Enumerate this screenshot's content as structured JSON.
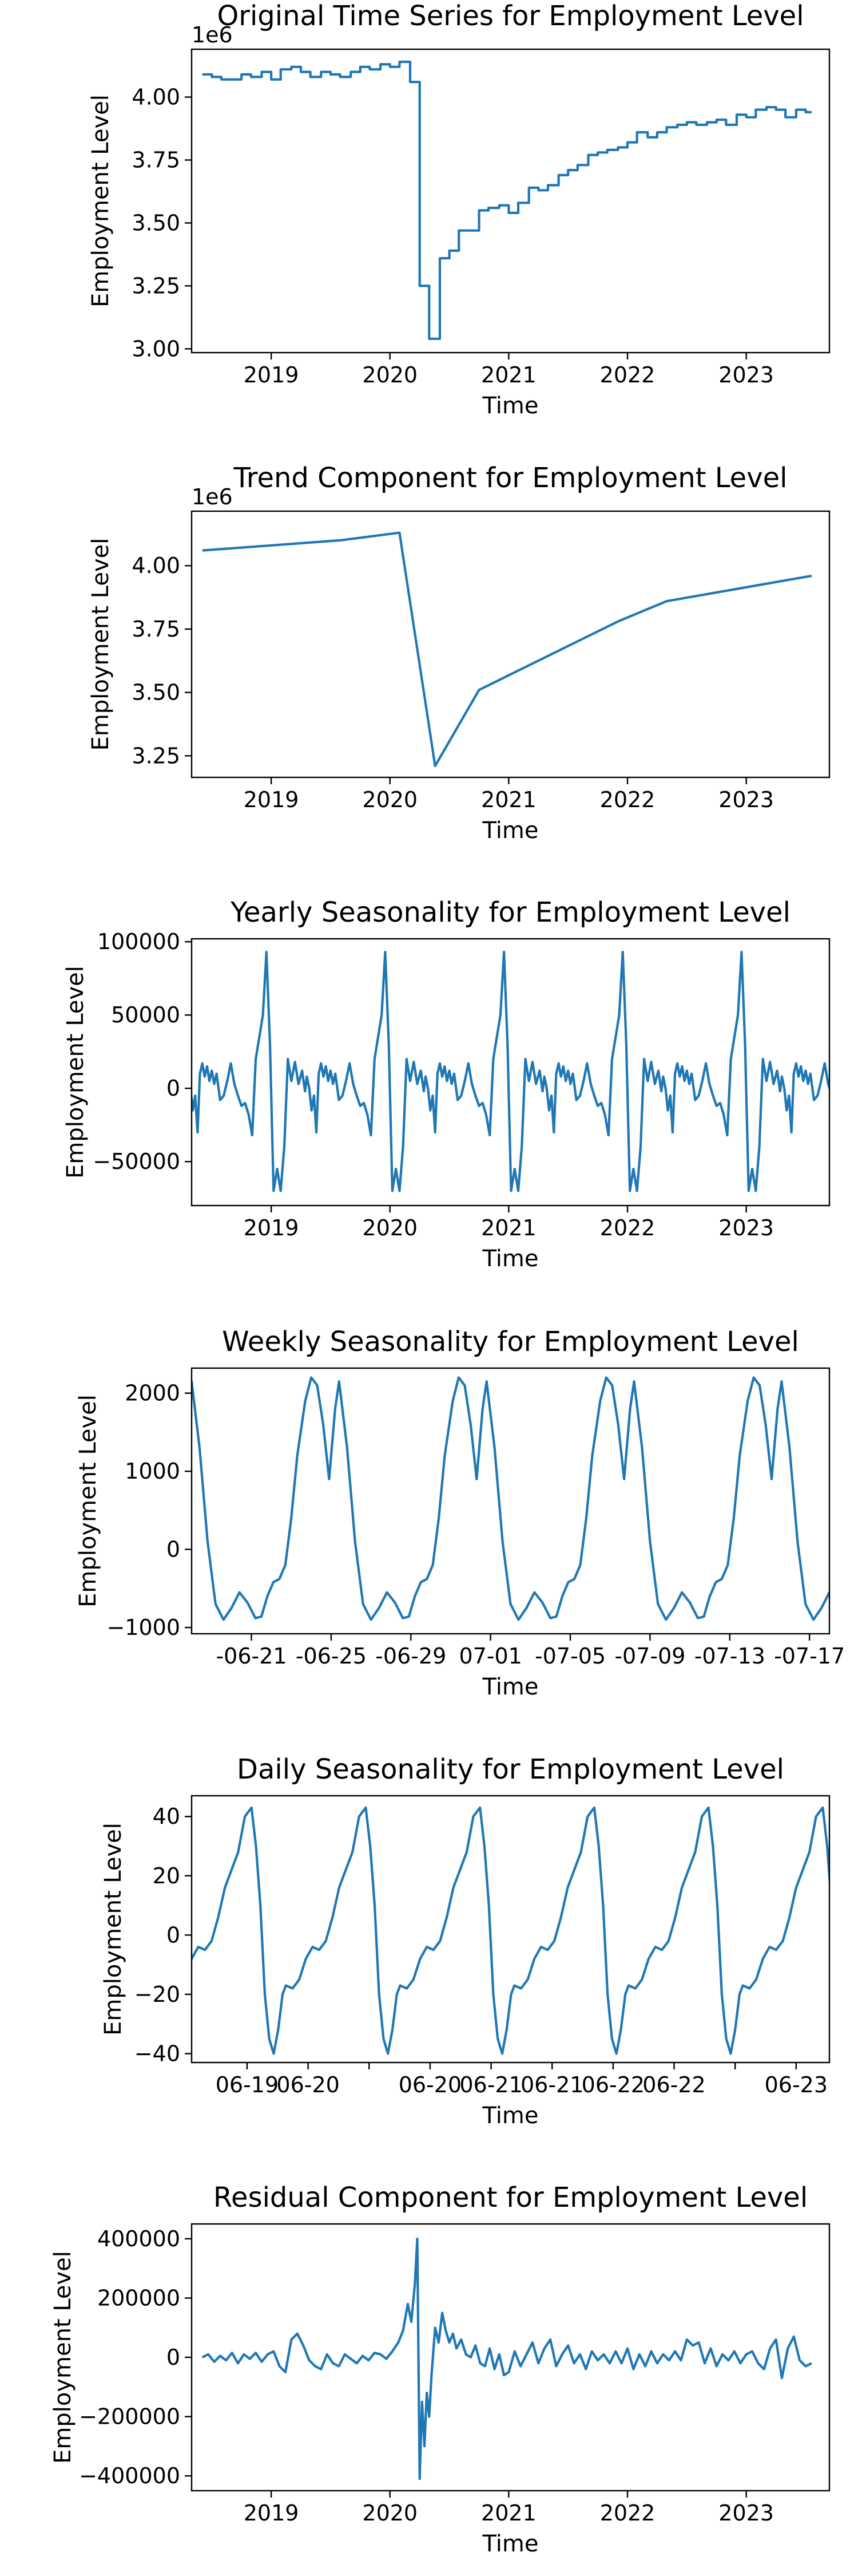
{
  "line_color": "#1f77b4",
  "chart_data": [
    {
      "type": "line",
      "title": "Original Time Series for Employment Level",
      "xlabel": "Time",
      "ylabel": "Employment Level",
      "offset_label": "1e6",
      "xlim": [
        2018.33,
        2023.7
      ],
      "ylim": [
        2.985,
        4.19
      ],
      "xticks": [
        2019,
        2020,
        2021,
        2022,
        2023
      ],
      "xtick_labels": [
        "2019",
        "2020",
        "2021",
        "2022",
        "2023"
      ],
      "yticks": [
        3.0,
        3.25,
        3.5,
        3.75,
        4.0
      ],
      "ytick_labels": [
        "3.00",
        "3.25",
        "3.50",
        "3.75",
        "4.00"
      ],
      "grid": false,
      "step": true,
      "series": [
        {
          "x": [
            2018.42,
            2018.5,
            2018.58,
            2018.75,
            2018.83,
            2018.92,
            2019.0,
            2019.08,
            2019.17,
            2019.25,
            2019.33,
            2019.42,
            2019.5,
            2019.58,
            2019.67,
            2019.75,
            2019.83,
            2019.92,
            2020.0,
            2020.08,
            2020.17,
            2020.25,
            2020.33,
            2020.42,
            2020.5,
            2020.58,
            2020.67,
            2020.75,
            2020.83,
            2020.92,
            2021.0,
            2021.08,
            2021.17,
            2021.25,
            2021.33,
            2021.42,
            2021.5,
            2021.58,
            2021.67,
            2021.75,
            2021.83,
            2021.92,
            2022.0,
            2022.08,
            2022.17,
            2022.25,
            2022.33,
            2022.42,
            2022.5,
            2022.58,
            2022.67,
            2022.75,
            2022.83,
            2022.92,
            2023.0,
            2023.08,
            2023.17,
            2023.25,
            2023.33,
            2023.42,
            2023.5,
            2023.55
          ],
          "y": [
            4.09,
            4.08,
            4.07,
            4.09,
            4.08,
            4.1,
            4.07,
            4.11,
            4.12,
            4.1,
            4.08,
            4.1,
            4.09,
            4.08,
            4.1,
            4.12,
            4.11,
            4.13,
            4.12,
            4.14,
            4.06,
            3.25,
            3.04,
            3.36,
            3.39,
            3.47,
            3.47,
            3.55,
            3.56,
            3.57,
            3.54,
            3.58,
            3.64,
            3.63,
            3.65,
            3.69,
            3.71,
            3.73,
            3.77,
            3.78,
            3.79,
            3.8,
            3.82,
            3.86,
            3.84,
            3.86,
            3.88,
            3.89,
            3.9,
            3.89,
            3.9,
            3.91,
            3.89,
            3.93,
            3.92,
            3.95,
            3.96,
            3.95,
            3.92,
            3.95,
            3.94,
            3.94
          ]
        }
      ]
    },
    {
      "type": "line",
      "title": "Trend Component for Employment Level",
      "xlabel": "Time",
      "ylabel": "Employment Level",
      "offset_label": "1e6",
      "xlim": [
        2018.33,
        2023.7
      ],
      "ylim": [
        3.165,
        4.215
      ],
      "xticks": [
        2019,
        2020,
        2021,
        2022,
        2023
      ],
      "xtick_labels": [
        "2019",
        "2020",
        "2021",
        "2022",
        "2023"
      ],
      "yticks": [
        3.25,
        3.5,
        3.75,
        4.0
      ],
      "ytick_labels": [
        "3.25",
        "3.50",
        "3.75",
        "4.00"
      ],
      "grid": false,
      "series": [
        {
          "x": [
            2018.42,
            2019.58,
            2020.08,
            2020.38,
            2020.75,
            2021.92,
            2022.33,
            2023.55
          ],
          "y": [
            4.06,
            4.1,
            4.13,
            3.21,
            3.51,
            3.78,
            3.86,
            3.96
          ]
        }
      ]
    },
    {
      "type": "line",
      "title": "Yearly Seasonality for Employment Level",
      "xlabel": "Time",
      "ylabel": "Employment Level",
      "xlim": [
        2018.33,
        2023.7
      ],
      "ylim": [
        -80000,
        102000
      ],
      "xticks": [
        2019,
        2020,
        2021,
        2022,
        2023
      ],
      "xtick_labels": [
        "2019",
        "2020",
        "2021",
        "2022",
        "2023"
      ],
      "yticks": [
        -50000,
        0,
        50000,
        100000
      ],
      "ytick_labels": [
        "−50000",
        "0",
        "50000",
        "100000"
      ],
      "grid": false,
      "periodic": {
        "x_start": 2018.42,
        "x_end": 2023.55,
        "period": 1.0,
        "phase_origin": 2018.42,
        "phase": [
          0.0,
          0.02,
          0.04,
          0.06,
          0.08,
          0.1,
          0.12,
          0.15,
          0.18,
          0.21,
          0.24,
          0.27,
          0.3,
          0.33,
          0.36,
          0.39,
          0.42,
          0.45,
          0.48,
          0.51,
          0.54,
          0.57,
          0.6,
          0.63,
          0.66,
          0.69,
          0.72,
          0.75,
          0.78,
          0.81,
          0.84,
          0.865,
          0.88,
          0.9,
          0.92,
          0.94,
          0.96,
          0.98,
          1.0
        ],
        "y": [
          17000,
          8000,
          15000,
          5000,
          12000,
          3000,
          10000,
          -8000,
          -5000,
          5000,
          17000,
          3000,
          -5000,
          -12000,
          -10000,
          -18000,
          -32000,
          20000,
          35000,
          50000,
          93000,
          30000,
          -70000,
          -55000,
          -70000,
          -40000,
          20000,
          5000,
          18000,
          3000,
          12000,
          -2000,
          8000,
          0,
          -15000,
          -5000,
          -30000,
          10000,
          17000
        ]
      }
    },
    {
      "type": "line",
      "title": "Weekly Seasonality for Employment Level",
      "xlabel": "Time",
      "ylabel": "Employment Level",
      "xlim": [
        0,
        32
      ],
      "ylim": [
        -1080,
        2320
      ],
      "xticks": [
        3,
        7,
        11,
        15,
        19,
        23,
        27,
        31
      ],
      "xtick_labels": [
        "-06-21",
        "-06-25",
        "-06-29",
        "07-01",
        "-07-05",
        "-07-09",
        "-07-13",
        "-07-17"
      ],
      "yticks": [
        -1000,
        0,
        1000,
        2000
      ],
      "ytick_labels": [
        "−1000",
        "0",
        "1000",
        "2000"
      ],
      "grid": false,
      "periodic": {
        "x_start": 0,
        "x_end": 32,
        "period": 7.4,
        "phase_origin": 0,
        "phase": [
          0.0,
          0.4,
          0.8,
          1.2,
          1.6,
          2.0,
          2.4,
          2.8,
          3.2,
          3.5,
          3.8,
          4.1,
          4.4,
          4.7,
          5.0,
          5.3,
          5.7,
          6.0,
          6.3,
          6.6,
          6.9,
          7.2,
          7.4
        ],
        "y": [
          2150,
          1300,
          100,
          -700,
          -900,
          -750,
          -550,
          -680,
          -880,
          -860,
          -600,
          -420,
          -380,
          -200,
          400,
          1200,
          1900,
          2200,
          2100,
          1600,
          900,
          1800,
          2150
        ]
      }
    },
    {
      "type": "line",
      "title": "Daily Seasonality for Employment Level",
      "xlabel": "Time",
      "ylabel": "Employment Level",
      "xlim": [
        0,
        115
      ],
      "ylim": [
        -43,
        47
      ],
      "xticks": [
        10,
        21,
        32,
        43,
        54,
        65,
        76,
        87,
        98,
        109
      ],
      "xtick_labels": [
        "06-19",
        "06-20",
        "06-20",
        "06-21",
        "06-21",
        "06-22",
        "06-22",
        "06-23"
      ],
      "xtick_label_index": [
        0,
        1,
        3,
        4,
        5,
        6,
        7,
        9
      ],
      "yticks": [
        -40,
        -20,
        0,
        20,
        40
      ],
      "ytick_labels": [
        "−40",
        "−20",
        "0",
        "20",
        "40"
      ],
      "grid": false,
      "periodic": {
        "x_start": 0,
        "x_end": 115,
        "period": 20.6,
        "phase_origin": -3.6,
        "phase": [
          0.0,
          1.2,
          2.4,
          3.6,
          4.8,
          6.0,
          7.2,
          8.4,
          9.6,
          10.8,
          12.0,
          13.2,
          14.4,
          15.2,
          16.0,
          16.8,
          17.6,
          18.4,
          19.2,
          20.0,
          20.6
        ],
        "y": [
          -17,
          -18,
          -15,
          -8,
          -4,
          -5,
          -2,
          6,
          16,
          22,
          28,
          40,
          43,
          30,
          10,
          -20,
          -35,
          -40,
          -32,
          -20,
          -17
        ]
      }
    },
    {
      "type": "line",
      "title": "Residual Component for Employment Level",
      "xlabel": "Time",
      "ylabel": "Employment Level",
      "xlim": [
        2018.33,
        2023.7
      ],
      "ylim": [
        -450000,
        450000
      ],
      "xticks": [
        2019,
        2020,
        2021,
        2022,
        2023
      ],
      "xtick_labels": [
        "2019",
        "2020",
        "2021",
        "2022",
        "2023"
      ],
      "yticks": [
        -400000,
        -200000,
        0,
        200000,
        400000
      ],
      "ytick_labels": [
        "−400000",
        "−200000",
        "0",
        "200000",
        "400000"
      ],
      "grid": false,
      "series": [
        {
          "x": [
            2018.42,
            2018.47,
            2018.52,
            2018.57,
            2018.62,
            2018.67,
            2018.72,
            2018.77,
            2018.82,
            2018.87,
            2018.92,
            2018.97,
            2019.02,
            2019.07,
            2019.12,
            2019.17,
            2019.22,
            2019.27,
            2019.32,
            2019.37,
            2019.42,
            2019.47,
            2019.52,
            2019.57,
            2019.62,
            2019.67,
            2019.72,
            2019.77,
            2019.82,
            2019.87,
            2019.92,
            2019.97,
            2020.02,
            2020.07,
            2020.11,
            2020.15,
            2020.18,
            2020.21,
            2020.23,
            2020.25,
            2020.27,
            2020.29,
            2020.31,
            2020.33,
            2020.35,
            2020.38,
            2020.41,
            2020.44,
            2020.47,
            2020.5,
            2020.53,
            2020.56,
            2020.6,
            2020.64,
            2020.68,
            2020.72,
            2020.76,
            2020.8,
            2020.84,
            2020.88,
            2020.92,
            2020.96,
            2021.0,
            2021.05,
            2021.1,
            2021.15,
            2021.2,
            2021.25,
            2021.3,
            2021.35,
            2021.4,
            2021.45,
            2021.5,
            2021.55,
            2021.6,
            2021.65,
            2021.7,
            2021.75,
            2021.8,
            2021.85,
            2021.9,
            2021.95,
            2022.0,
            2022.05,
            2022.1,
            2022.15,
            2022.2,
            2022.25,
            2022.3,
            2022.35,
            2022.4,
            2022.45,
            2022.5,
            2022.55,
            2022.6,
            2022.65,
            2022.7,
            2022.75,
            2022.8,
            2022.85,
            2022.9,
            2022.95,
            2023.0,
            2023.05,
            2023.1,
            2023.15,
            2023.2,
            2023.25,
            2023.3,
            2023.35,
            2023.4,
            2023.45,
            2023.5,
            2023.55
          ],
          "y": [
            0,
            10000,
            -15000,
            5000,
            -10000,
            15000,
            -20000,
            10000,
            -5000,
            15000,
            -15000,
            10000,
            20000,
            -30000,
            -50000,
            60000,
            80000,
            40000,
            -10000,
            -30000,
            -40000,
            10000,
            -20000,
            -30000,
            10000,
            -5000,
            -20000,
            5000,
            -10000,
            15000,
            10000,
            -5000,
            20000,
            50000,
            90000,
            180000,
            120000,
            250000,
            400000,
            -410000,
            -150000,
            -300000,
            -120000,
            -200000,
            -60000,
            100000,
            50000,
            150000,
            90000,
            50000,
            80000,
            30000,
            60000,
            10000,
            0,
            40000,
            -20000,
            -30000,
            30000,
            -40000,
            10000,
            -60000,
            -50000,
            20000,
            -30000,
            10000,
            50000,
            -20000,
            30000,
            60000,
            -30000,
            10000,
            40000,
            -20000,
            10000,
            -40000,
            20000,
            -10000,
            10000,
            -20000,
            20000,
            -20000,
            30000,
            -40000,
            10000,
            -30000,
            20000,
            -20000,
            10000,
            -10000,
            20000,
            -10000,
            60000,
            40000,
            50000,
            -20000,
            30000,
            -30000,
            10000,
            -10000,
            20000,
            -20000,
            10000,
            20000,
            -20000,
            -40000,
            30000,
            60000,
            -70000,
            30000,
            70000,
            -10000,
            -30000,
            -20000
          ]
        }
      ]
    }
  ]
}
